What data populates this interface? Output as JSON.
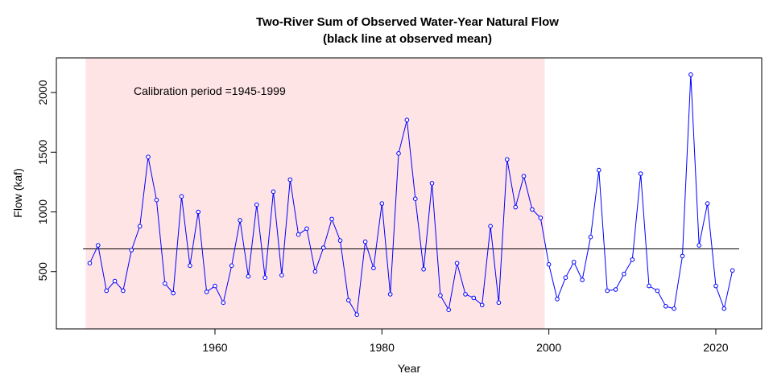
{
  "chart_data": {
    "type": "line",
    "title": "Two-River Sum of Observed Water-Year Natural Flow",
    "subtitle": "(black line at observed mean)",
    "xlabel": "Year",
    "ylabel": "Flow (kaf)",
    "xlim": [
      1941,
      2025.5
    ],
    "ylim": [
      20,
      2290
    ],
    "x_ticks": [
      1960,
      1980,
      2000,
      2020
    ],
    "y_ticks": [
      500,
      1000,
      1500,
      2000
    ],
    "grid": false,
    "mean_line": 690,
    "calibration_period": [
      1945,
      1999
    ],
    "annotation": "Calibration period =1945-1999",
    "colors": {
      "series": "#0000ff",
      "mean_line": "#000000",
      "calibration_shade": "#ffe4e6"
    },
    "series": [
      {
        "x": [
          1945,
          1946,
          1947,
          1948,
          1949,
          1950,
          1951,
          1952,
          1953,
          1954,
          1955,
          1956,
          1957,
          1958,
          1959,
          1960,
          1961,
          1962,
          1963,
          1964,
          1965,
          1966,
          1967,
          1968,
          1969,
          1970,
          1971,
          1972,
          1973,
          1974,
          1975,
          1976,
          1977,
          1978,
          1979,
          1980,
          1981,
          1982,
          1983,
          1984,
          1985,
          1986,
          1987,
          1988,
          1989,
          1990,
          1991,
          1992,
          1993,
          1994,
          1995,
          1996,
          1997,
          1998,
          1999,
          2000,
          2001,
          2002,
          2003,
          2004,
          2005,
          2006,
          2007,
          2008,
          2009,
          2010,
          2011,
          2012,
          2013,
          2014,
          2015,
          2016,
          2017,
          2018,
          2019,
          2020,
          2021,
          2022
        ],
        "values": [
          570,
          720,
          340,
          420,
          340,
          680,
          880,
          1460,
          1100,
          400,
          320,
          1130,
          550,
          1000,
          330,
          380,
          240,
          550,
          930,
          460,
          1060,
          450,
          1170,
          470,
          1270,
          810,
          860,
          500,
          700,
          940,
          760,
          260,
          140,
          750,
          530,
          1070,
          310,
          1490,
          1770,
          1110,
          520,
          1240,
          300,
          180,
          570,
          310,
          280,
          220,
          880,
          240,
          1440,
          1040,
          1300,
          1020,
          950,
          560,
          270,
          450,
          580,
          430,
          790,
          1350,
          340,
          350,
          480,
          600,
          1320,
          380,
          340,
          210,
          190,
          630,
          2150,
          720,
          1070,
          380,
          190,
          510
        ]
      }
    ]
  }
}
